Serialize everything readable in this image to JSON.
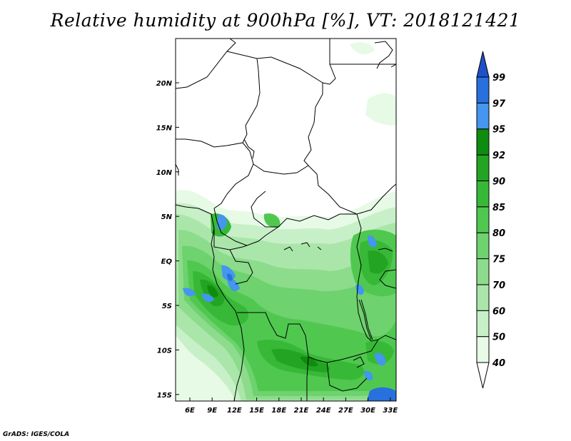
{
  "title": "Relative humidity at 900hPa [%], VT: 2018121421",
  "credit": "GrADS: IGES/COLA",
  "map": {
    "x_ticks": [
      "6E",
      "9E",
      "12E",
      "15E",
      "18E",
      "21E",
      "24E",
      "27E",
      "30E",
      "33E"
    ],
    "y_ticks": [
      "20N",
      "15N",
      "10N",
      "5N",
      "EQ",
      "5S",
      "10S",
      "15S"
    ]
  },
  "colorbar": {
    "levels": [
      "40",
      "50",
      "60",
      "70",
      "75",
      "80",
      "85",
      "90",
      "92",
      "95",
      "97",
      "99"
    ],
    "colors": [
      "#ffffff",
      "#e6fae6",
      "#c8f0c8",
      "#aae6aa",
      "#8cdc8c",
      "#6ed26e",
      "#50c850",
      "#37b937",
      "#23a523",
      "#0f8c0f",
      "#4496ee",
      "#2870dd",
      "#1e50c8"
    ]
  }
}
